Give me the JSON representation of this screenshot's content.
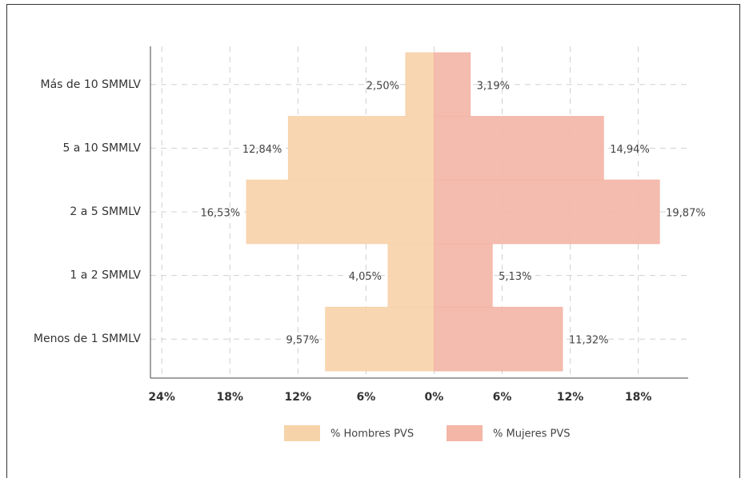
{
  "chart_data": {
    "type": "pyramid",
    "categories": [
      "Más de 10 SMMLV",
      "5 a 10 SMMLV",
      "2 a 5 SMMLV",
      "1 a 2 SMMLV",
      "Menos de 1 SMMLV"
    ],
    "series": [
      {
        "name": "% Hombres PVS",
        "color": "#f7d3aa",
        "values": [
          -2.5,
          -12.84,
          -16.53,
          -4.05,
          -9.57
        ],
        "value_labels": [
          "2,50%",
          "12,84%",
          "16,53%",
          "4,05%",
          "9,57%"
        ]
      },
      {
        "name": "% Mujeres PVS",
        "color": "#f3b6a7",
        "values": [
          3.19,
          14.94,
          19.87,
          5.13,
          11.32
        ],
        "value_labels": [
          "3,19%",
          "14,94%",
          "19,87%",
          "5,13%",
          "11,32%"
        ]
      }
    ],
    "xlim": [
      -25,
      22.4
    ],
    "xticks": [
      {
        "value": -24,
        "label": "24%"
      },
      {
        "value": -18,
        "label": "18%"
      },
      {
        "value": -12,
        "label": "12%"
      },
      {
        "value": -6,
        "label": "6%"
      },
      {
        "value": 0,
        "label": "0%"
      },
      {
        "value": 6,
        "label": "6%"
      },
      {
        "value": 12,
        "label": "12%"
      },
      {
        "value": 18,
        "label": "18%"
      }
    ],
    "grid": true,
    "legend": "bottom"
  }
}
